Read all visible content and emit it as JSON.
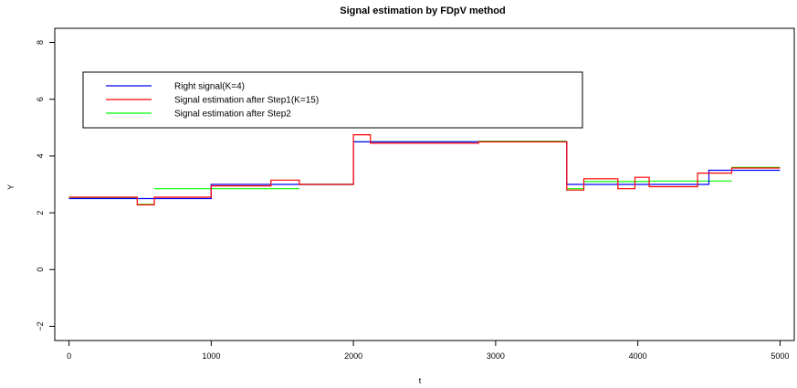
{
  "chart_data": {
    "type": "line",
    "title": "Signal estimation by FDpV method",
    "xlabel": "t",
    "ylabel": "Y",
    "xlim": [
      -100,
      5100
    ],
    "ylim": [
      -2.5,
      8.5
    ],
    "xticks": [
      0,
      1000,
      2000,
      3000,
      4000,
      5000
    ],
    "yticks": [
      -2,
      0,
      2,
      4,
      6,
      8
    ],
    "xtick_labels": [
      "0",
      "1000",
      "2000",
      "3000",
      "4000",
      "5000"
    ],
    "ytick_labels": [
      "−2",
      "0",
      "2",
      "4",
      "6",
      "8"
    ],
    "grid": false,
    "legend_position": "top-left",
    "series": [
      {
        "name": "Right signal(K=4)",
        "color": "#0000ff",
        "step": true,
        "x": [
          0,
          1000,
          2000,
          3500,
          4500,
          5000
        ],
        "y": [
          2.5,
          3.0,
          4.5,
          3.0,
          3.5,
          3.5
        ]
      },
      {
        "name": "Signal estimation after Step1(K=15)",
        "color": "#ff0000",
        "step": true,
        "x": [
          0,
          480,
          600,
          1000,
          1420,
          1620,
          2000,
          2120,
          2880,
          3500,
          3620,
          3860,
          3980,
          4080,
          4420,
          4660,
          5000
        ],
        "y": [
          2.55,
          2.28,
          2.55,
          2.95,
          3.15,
          3.0,
          4.75,
          4.45,
          4.5,
          2.8,
          3.2,
          2.85,
          3.25,
          2.92,
          3.4,
          3.58,
          3.58
        ]
      },
      {
        "name": "Signal estimation after Step2",
        "color": "#00ff00",
        "step": true,
        "segments": [
          {
            "x": [
              0,
              480
            ],
            "y": 2.52
          },
          {
            "x": [
              480,
              600
            ],
            "y": 2.3
          },
          {
            "x": [
              600,
              1000
            ],
            "y": 2.85
          },
          {
            "x": [
              1000,
              1620
            ],
            "y": 2.85
          },
          {
            "x": [
              1620,
              2000
            ],
            "y": 3.0
          },
          {
            "x": [
              2000,
              2880
            ],
            "y": 4.5
          },
          {
            "x": [
              2880,
              3500
            ],
            "y": 4.52
          },
          {
            "x": [
              3500,
              3620
            ],
            "y": 2.85
          },
          {
            "x": [
              3620,
              4080
            ],
            "y": 3.1
          },
          {
            "x": [
              4080,
              4660
            ],
            "y": 3.12
          },
          {
            "x": [
              4660,
              5000
            ],
            "y": 3.6
          }
        ]
      }
    ]
  }
}
